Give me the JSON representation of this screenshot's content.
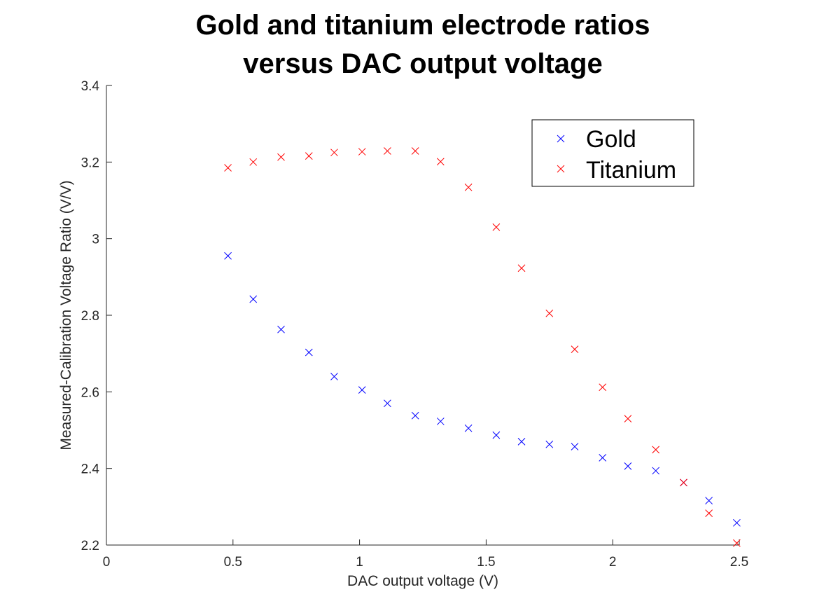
{
  "chart_data": {
    "type": "scatter",
    "title": [
      "Gold and titanium electrode ratios",
      "versus DAC output voltage"
    ],
    "xlabel": "DAC output voltage (V)",
    "ylabel": "Measured-Calibration Voltage Ratio (V/V)",
    "xlim": [
      0,
      2.5
    ],
    "ylim": [
      2.2,
      3.4
    ],
    "x_ticks": [
      0,
      0.5,
      1,
      1.5,
      2,
      2.5
    ],
    "x_tick_labels": [
      "0",
      "0.5",
      "1",
      "1.5",
      "2",
      "2.5"
    ],
    "y_ticks": [
      2.2,
      2.4,
      2.6,
      2.8,
      3.0,
      3.2,
      3.4
    ],
    "y_tick_labels": [
      "2.2",
      "2.4",
      "2.6",
      "2.8",
      "3",
      "3.2",
      "3.4"
    ],
    "grid": false,
    "legend_position": "top-right",
    "marker": "x",
    "series": [
      {
        "name": "Gold",
        "color": "#0000ff",
        "x": [
          0.48,
          0.58,
          0.69,
          0.8,
          0.9,
          1.01,
          1.11,
          1.22,
          1.32,
          1.43,
          1.54,
          1.64,
          1.75,
          1.85,
          1.96,
          2.06,
          2.17,
          2.28,
          2.38,
          2.49
        ],
        "y": [
          2.955,
          2.842,
          2.763,
          2.703,
          2.64,
          2.605,
          2.57,
          2.538,
          2.523,
          2.505,
          2.487,
          2.47,
          2.463,
          2.457,
          2.428,
          2.406,
          2.394,
          2.363,
          2.316,
          2.258
        ]
      },
      {
        "name": "Titanium",
        "color": "#ff0000",
        "x": [
          0.48,
          0.58,
          0.69,
          0.8,
          0.9,
          1.01,
          1.11,
          1.22,
          1.32,
          1.43,
          1.54,
          1.64,
          1.75,
          1.85,
          1.96,
          2.06,
          2.17,
          2.28,
          2.38,
          2.49
        ],
        "y": [
          3.185,
          3.2,
          3.213,
          3.216,
          3.225,
          3.227,
          3.229,
          3.229,
          3.201,
          3.134,
          3.03,
          2.923,
          2.805,
          2.711,
          2.612,
          2.53,
          2.449,
          2.363,
          2.283,
          2.205
        ]
      }
    ]
  }
}
